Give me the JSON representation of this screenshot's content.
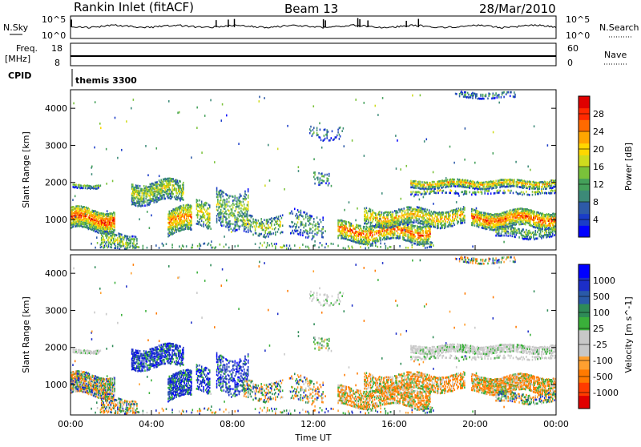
{
  "header": {
    "title": "Rankin Inlet (fitACF)",
    "beam": "Beam 13",
    "date": "28/Mar/2010"
  },
  "top_panels": {
    "nsky_label": "N.Sky",
    "nsky_ticks": [
      "10^5",
      "10^0"
    ],
    "nsearch_label": "N.Search",
    "nsearch_ticks": [
      "10^5",
      "10^0"
    ],
    "freq_label": "Freq.",
    "freq_unit": "[MHz]",
    "freq_ticks": [
      "18",
      "8"
    ],
    "nave_label": "Nave",
    "nave_ticks": [
      "60",
      "0"
    ],
    "cpid_label": "CPID",
    "cpid_value": "themis 3300"
  },
  "colors": {
    "power_scale": [
      "#0000ff",
      "#1a3cc8",
      "#2d5aa8",
      "#3c8a78",
      "#44a05a",
      "#7ac23a",
      "#cfdc1e",
      "#ffd700",
      "#ffa500",
      "#ff6a00",
      "#ff2a00",
      "#e00000"
    ],
    "velocity_scale": [
      "#e00000",
      "#ff3c00",
      "#ff7a00",
      "#ffa030",
      "#c8c8c8",
      "#c8c8c8",
      "#3ab03a",
      "#2e8b57",
      "#2a5aa8",
      "#1c2ec8",
      "#0000ff"
    ]
  },
  "chart_data": [
    {
      "type": "heatmap",
      "title": "Power",
      "ylabel": "Slant Range [km]",
      "xlabel": "",
      "ylim": [
        180,
        4500
      ],
      "xlim": [
        0,
        24
      ],
      "y_ticks": [
        "4000",
        "3000",
        "2000",
        "1000"
      ],
      "colorbar_label": "Power [dB]",
      "colorbar_ticks": [
        "28",
        "24",
        "20",
        "16",
        "12",
        "8",
        "4"
      ]
    },
    {
      "type": "heatmap",
      "title": "Velocity",
      "ylabel": "Slant Range [km]",
      "xlabel": "Time UT",
      "ylim": [
        180,
        4500
      ],
      "xlim": [
        0,
        24
      ],
      "y_ticks": [
        "4000",
        "3000",
        "2000",
        "1000"
      ],
      "x_ticks": [
        "00:00",
        "04:00",
        "08:00",
        "12:00",
        "16:00",
        "20:00",
        "00:00"
      ],
      "colorbar_label": "Velocity [m s^-1]",
      "colorbar_ticks": [
        "1000",
        "500",
        "100",
        "25",
        "-25",
        "-100",
        "-500",
        "-1000"
      ]
    }
  ]
}
